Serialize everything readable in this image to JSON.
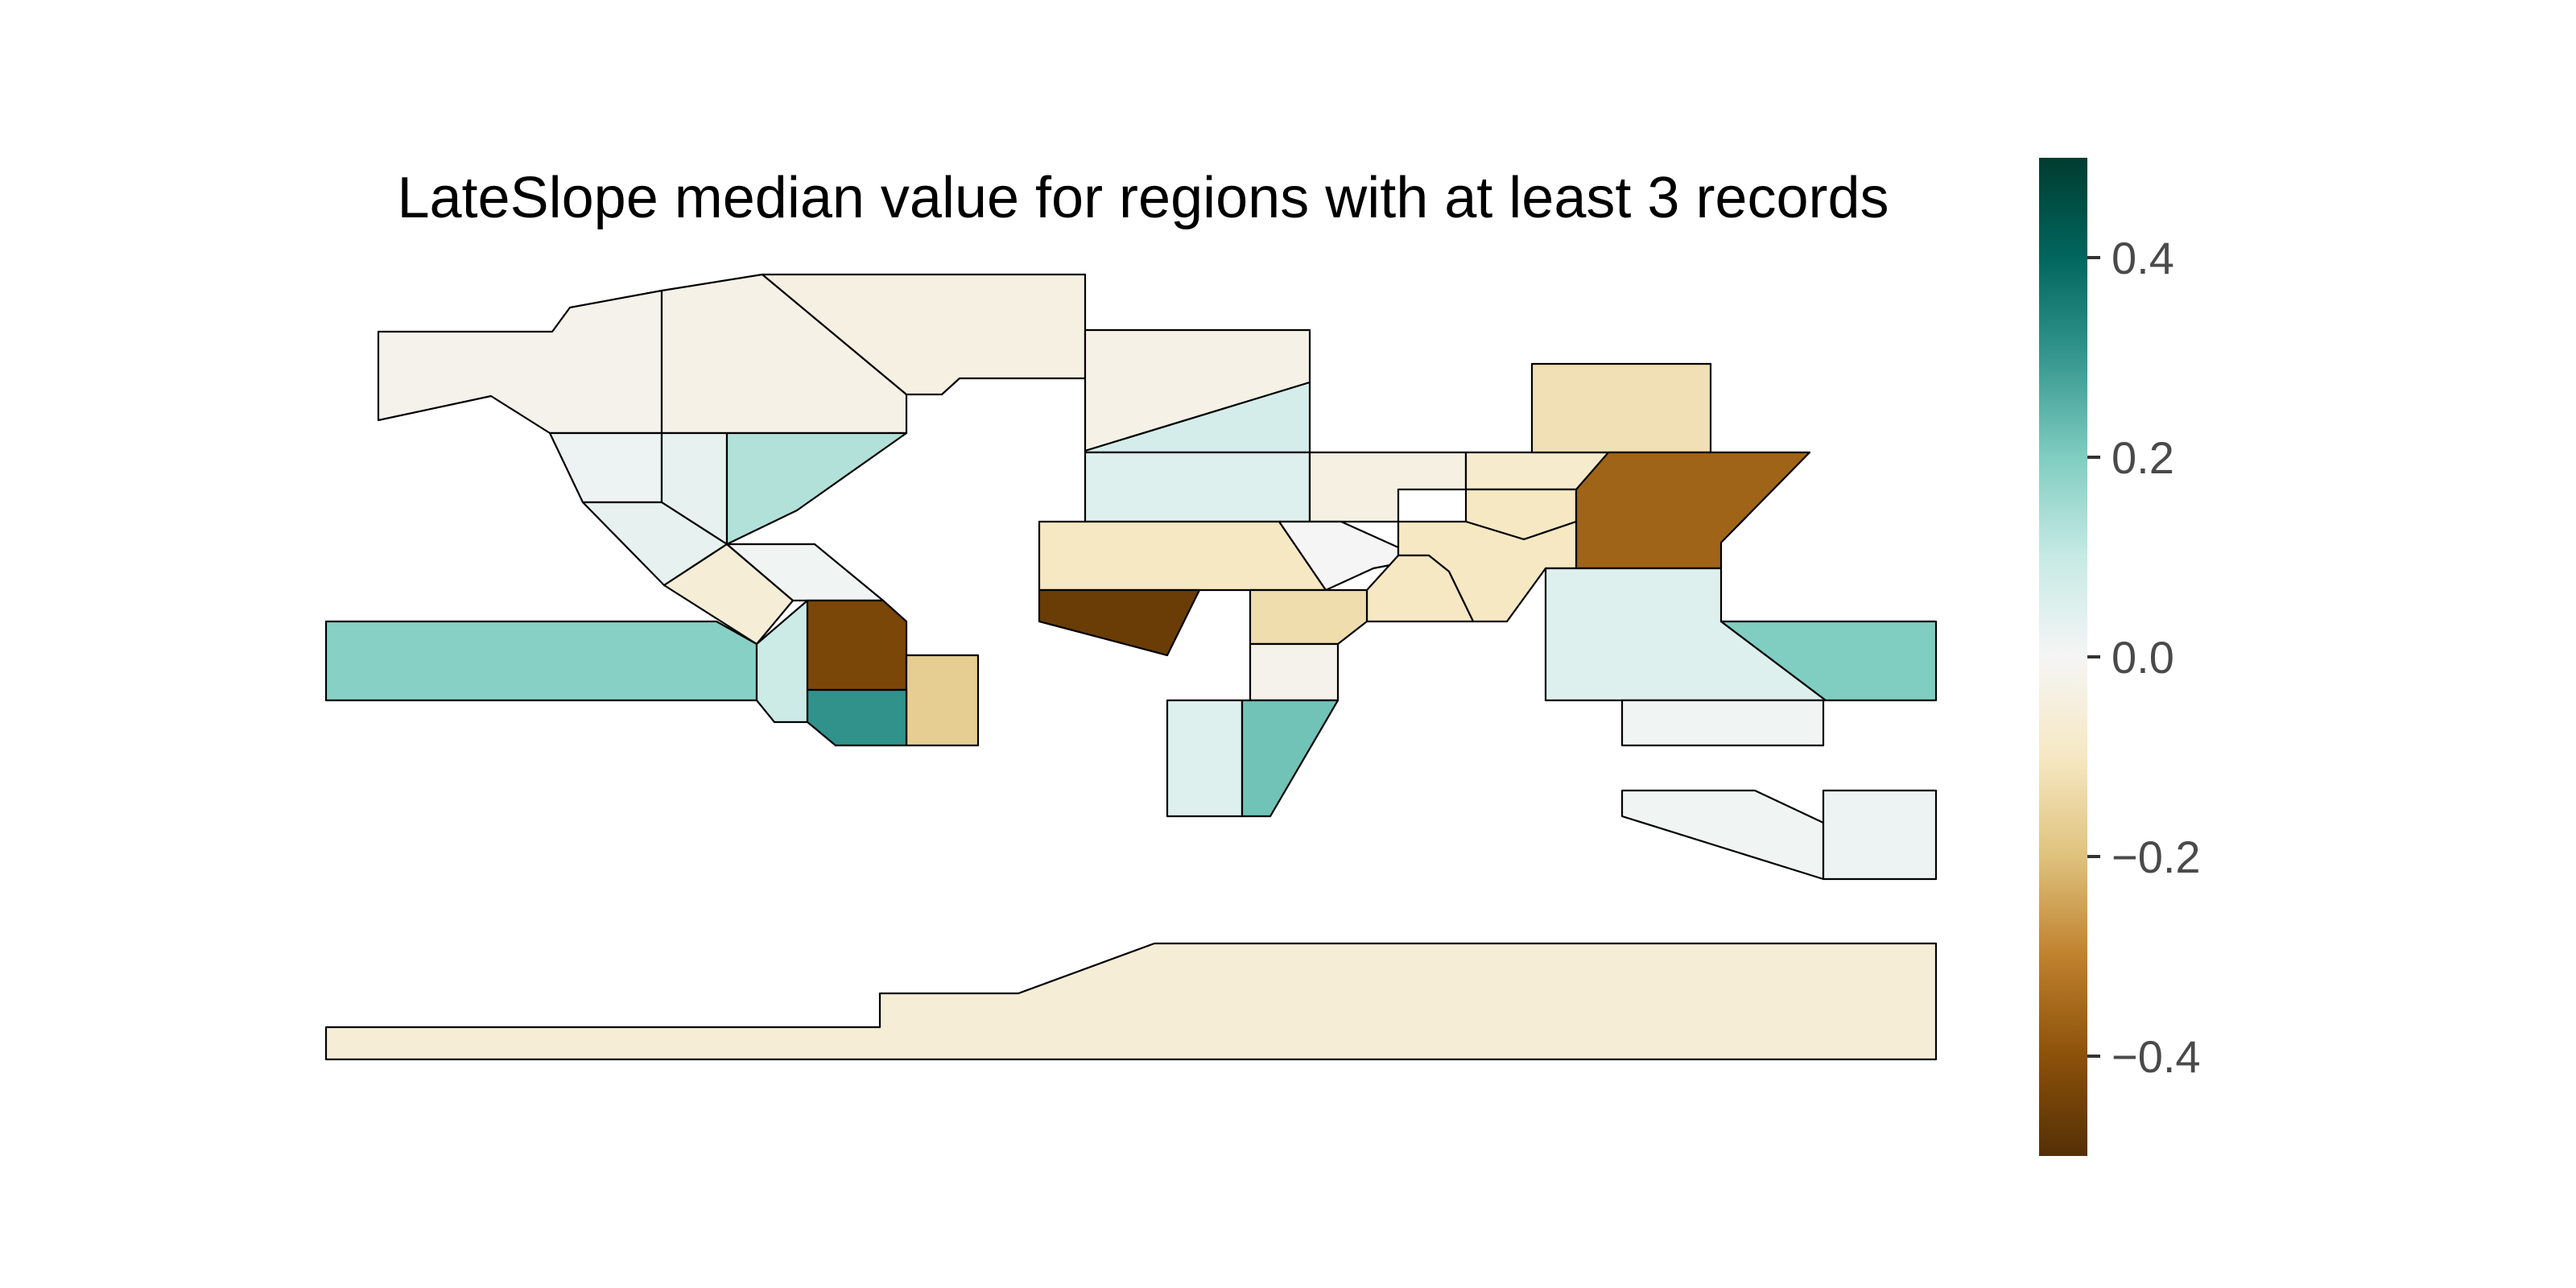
{
  "title": "LateSlope median value for regions with at least 3 records",
  "colorbar": {
    "colormap": "BrBG",
    "range": [
      -0.5,
      0.5
    ],
    "ticks": [
      {
        "value": 0.4,
        "label": "0.4"
      },
      {
        "value": 0.2,
        "label": "0.2"
      },
      {
        "value": 0.0,
        "label": "0.0"
      },
      {
        "value": -0.2,
        "label": "−0.2"
      },
      {
        "value": -0.4,
        "label": "−0.4"
      }
    ],
    "stops": [
      "#543005",
      "#8c510a",
      "#bf812d",
      "#dfc27d",
      "#f6e8c3",
      "#f5f5f5",
      "#c7eae5",
      "#80cdc1",
      "#35978f",
      "#01665e",
      "#003c30"
    ]
  },
  "regions": [
    {
      "id": "ALA",
      "value": -0.02
    },
    {
      "id": "NWN",
      "value": -0.03
    },
    {
      "id": "NEN",
      "value": -0.04
    },
    {
      "id": "NWN-W",
      "value": 0.02
    },
    {
      "id": "WNA",
      "value": 0.03
    },
    {
      "id": "CNA",
      "value": 0.03
    },
    {
      "id": "ENA",
      "value": 0.13
    },
    {
      "id": "NCA",
      "value": -0.06
    },
    {
      "id": "SCA-E",
      "value": 0.01
    },
    {
      "id": "NEP",
      "value": 0.19
    },
    {
      "id": "SCA",
      "value": 0.09
    },
    {
      "id": "NWS",
      "value": -0.43
    },
    {
      "id": "NSA",
      "value": -0.17
    },
    {
      "id": "SAM",
      "value": 0.31
    },
    {
      "id": "GIC",
      "value": -0.03
    },
    {
      "id": "NEU",
      "value": 0.07
    },
    {
      "id": "WCE",
      "value": 0.05
    },
    {
      "id": "MED",
      "value": -0.1
    },
    {
      "id": "SAH",
      "value": -0.46
    },
    {
      "id": "RAR",
      "value": -0.04
    },
    {
      "id": "WSB",
      "value": -0.08
    },
    {
      "id": "ESB",
      "value": -0.12
    },
    {
      "id": "EAS-N",
      "value": -0.1
    },
    {
      "id": "RFE",
      "value": -0.36
    },
    {
      "id": "EEU",
      "value": 0.0
    },
    {
      "id": "WCA",
      "value": -0.1
    },
    {
      "id": "TIB",
      "value": -0.1
    },
    {
      "id": "ARP",
      "value": -0.13
    },
    {
      "id": "SAS",
      "value": 0.05
    },
    {
      "id": "NWP",
      "value": 0.2
    },
    {
      "id": "CAF",
      "value": -0.02
    },
    {
      "id": "WSAF",
      "value": 0.05
    },
    {
      "id": "ESAF",
      "value": 0.22
    },
    {
      "id": "SEA",
      "value": 0.01
    },
    {
      "id": "NAU",
      "value": 0.01
    },
    {
      "id": "SAU",
      "value": 0.02
    },
    {
      "id": "EAN",
      "value": -0.06
    }
  ]
}
